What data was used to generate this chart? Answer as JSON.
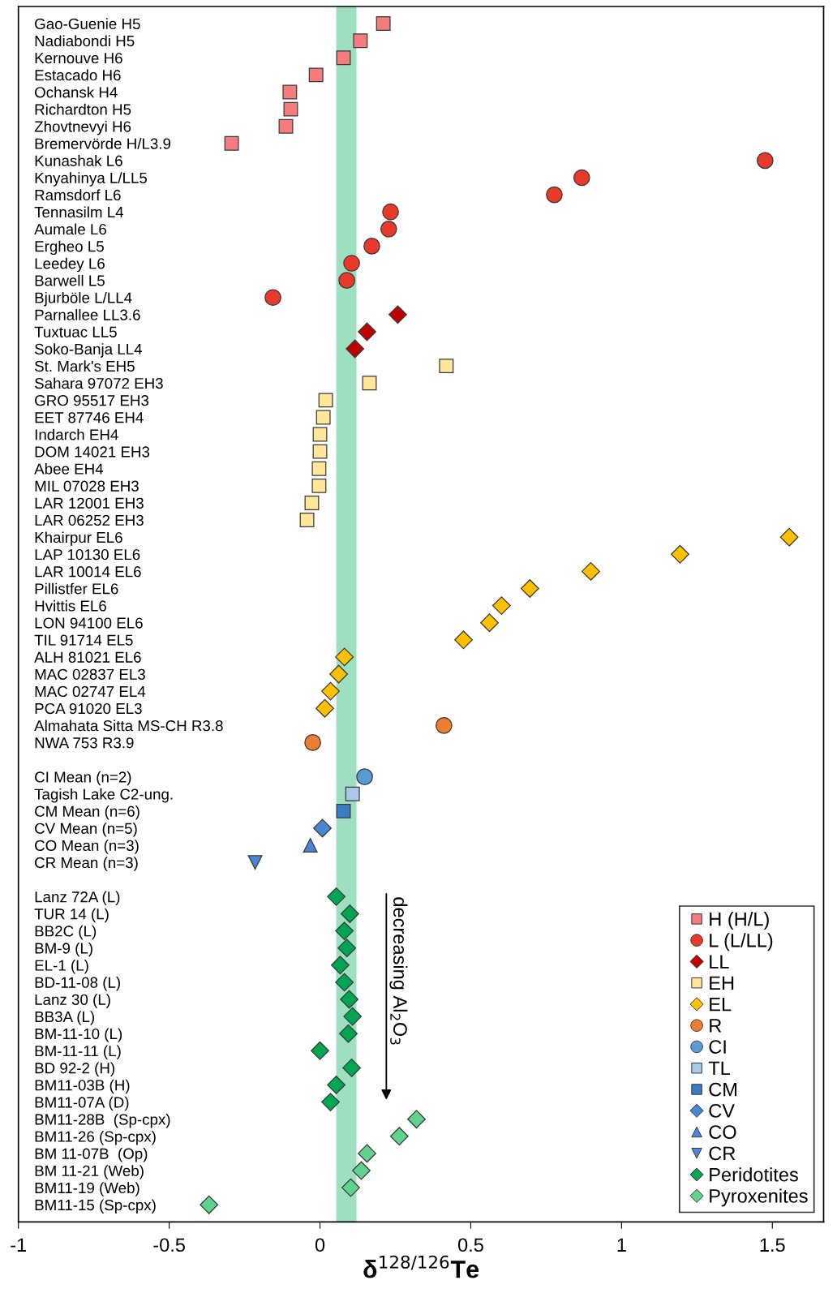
{
  "chart_data": {
    "type": "scatter",
    "orientation": "horizontal",
    "xlabel": "δ$^{128/126}$Te",
    "categories": [
      "Gao-Guenie H5",
      "Nadiabondi H5",
      "Kernouve H6",
      "Estacado H6",
      "Ochansk H4",
      "Richardton H5",
      "Zhovtnevyi H6",
      "Bremervörde H/L3.9",
      "Kunashak L6",
      "Knyahinya L/LL5",
      "Ramsdorf L6",
      "Tennasilm L4",
      "Aumale L6",
      "Ergheo L5",
      "Leedey L6",
      "Barwell L5",
      "Bjurböle L/LL4",
      "Parnallee LL3.6",
      "Tuxtuac LL5",
      "Soko-Banja LL4",
      "St. Mark's EH5",
      "Sahara 97072 EH3",
      "GRO 95517 EH3",
      "EET 87746 EH4",
      "Indarch EH4",
      "DOM 14021 EH3",
      "Abee EH4",
      "MIL 07028 EH3",
      "LAR 12001 EH3",
      "LAR 06252 EH3",
      "Khairpur EL6",
      "LAP 10130 EL6",
      "LAR 10014 EL6",
      "Pillistfer EL6",
      "Hvittis EL6",
      "LON 94100 EL6",
      "TIL 91714 EL5",
      "ALH 81021 EL6",
      "MAC 02837 EL3",
      "MAC 02747 EL4",
      "PCA 91020 EL3",
      "Almahata Sitta MS-CH R3.8",
      "NWA 753 R3.9",
      null,
      "CI Mean (n=2)",
      "Tagish Lake C2-ung.",
      "CM Mean (n=6)",
      "CV Mean (n=5)",
      "CO Mean (n=3)",
      "CR Mean (n=3)",
      null,
      "Lanz 72A (L)",
      "TUR 14 (L)",
      "BB2C (L)",
      "BM-9 (L)",
      "EL-1 (L)",
      "BD-11-08 (L)",
      "Lanz 30 (L)",
      "BB3A (L)",
      "BM-11-10 (L)",
      "BM-11-11 (L)",
      "BD 92-2 (H)",
      "BM11-03B (H)",
      "BM11-07A (D)",
      "BM11-28B  (Sp-cpx)",
      "BM11-26 (Sp-cpx)",
      "BM 11-07B  (Op)",
      "BM 11-21 (Web)",
      "BM11-19 (Web)",
      "BM11-15 (Sp-cpx)"
    ],
    "series": [
      {
        "name": "H (H/L)",
        "color": "#f47c7c",
        "marker": "square",
        "values": [
          0.21,
          0.134,
          0.078,
          -0.013,
          -0.1,
          -0.097,
          -0.113,
          -0.293,
          null,
          null,
          null,
          null,
          null,
          null,
          null,
          null,
          null,
          null,
          null,
          null,
          null,
          null,
          null,
          null,
          null,
          null,
          null,
          null,
          null,
          null,
          null,
          null,
          null,
          null,
          null,
          null,
          null,
          null,
          null,
          null,
          null,
          null,
          null,
          null,
          null,
          null,
          null,
          null,
          null,
          null,
          null,
          null,
          null,
          null,
          null,
          null,
          null,
          null,
          null,
          null,
          null,
          null,
          null,
          null,
          null,
          null,
          null,
          null,
          null,
          null
        ]
      },
      {
        "name": "L (L/LL)",
        "color": "#e8392a",
        "marker": "circle",
        "values": [
          null,
          null,
          null,
          null,
          null,
          null,
          null,
          null,
          1.476,
          0.868,
          0.777,
          0.234,
          0.228,
          0.172,
          0.105,
          0.089,
          -0.156,
          null,
          null,
          null,
          null,
          null,
          null,
          null,
          null,
          null,
          null,
          null,
          null,
          null,
          null,
          null,
          null,
          null,
          null,
          null,
          null,
          null,
          null,
          null,
          null,
          null,
          null,
          null,
          null,
          null,
          null,
          null,
          null,
          null,
          null,
          null,
          null,
          null,
          null,
          null,
          null,
          null,
          null,
          null,
          null,
          null,
          null,
          null,
          null,
          null,
          null,
          null,
          null,
          null
        ]
      },
      {
        "name": "LL",
        "color": "#c00000",
        "marker": "diamond",
        "values": [
          null,
          null,
          null,
          null,
          null,
          null,
          null,
          null,
          null,
          null,
          null,
          null,
          null,
          null,
          null,
          null,
          null,
          0.258,
          0.156,
          0.116,
          null,
          null,
          null,
          null,
          null,
          null,
          null,
          null,
          null,
          null,
          null,
          null,
          null,
          null,
          null,
          null,
          null,
          null,
          null,
          null,
          null,
          null,
          null,
          null,
          null,
          null,
          null,
          null,
          null,
          null,
          null,
          null,
          null,
          null,
          null,
          null,
          null,
          null,
          null,
          null,
          null,
          null,
          null,
          null,
          null,
          null,
          null,
          null,
          null,
          null
        ]
      },
      {
        "name": "EH",
        "color": "#ffe699",
        "marker": "square",
        "values": [
          null,
          null,
          null,
          null,
          null,
          null,
          null,
          null,
          null,
          null,
          null,
          null,
          null,
          null,
          null,
          null,
          null,
          null,
          null,
          null,
          0.419,
          0.164,
          0.019,
          0.011,
          0.0,
          0.0,
          -0.003,
          -0.003,
          -0.027,
          -0.043,
          null,
          null,
          null,
          null,
          null,
          null,
          null,
          null,
          null,
          null,
          null,
          null,
          null,
          null,
          null,
          null,
          null,
          null,
          null,
          null,
          null,
          null,
          null,
          null,
          null,
          null,
          null,
          null,
          null,
          null,
          null,
          null,
          null,
          null,
          null,
          null,
          null,
          null,
          null,
          null
        ]
      },
      {
        "name": "EL",
        "color": "#ffc000",
        "marker": "diamond",
        "values": [
          null,
          null,
          null,
          null,
          null,
          null,
          null,
          null,
          null,
          null,
          null,
          null,
          null,
          null,
          null,
          null,
          null,
          null,
          null,
          null,
          null,
          null,
          null,
          null,
          null,
          null,
          null,
          null,
          null,
          null,
          1.556,
          1.194,
          0.898,
          0.696,
          0.602,
          0.562,
          0.476,
          0.081,
          0.062,
          0.035,
          0.016,
          null,
          null,
          null,
          null,
          null,
          null,
          null,
          null,
          null,
          null,
          null,
          null,
          null,
          null,
          null,
          null,
          null,
          null,
          null,
          null,
          null,
          null,
          null,
          null,
          null,
          null,
          null,
          null,
          null
        ]
      },
      {
        "name": "R",
        "color": "#ed7d31",
        "marker": "circle",
        "values": [
          null,
          null,
          null,
          null,
          null,
          null,
          null,
          null,
          null,
          null,
          null,
          null,
          null,
          null,
          null,
          null,
          null,
          null,
          null,
          null,
          null,
          null,
          null,
          null,
          null,
          null,
          null,
          null,
          null,
          null,
          null,
          null,
          null,
          null,
          null,
          null,
          null,
          null,
          null,
          null,
          null,
          0.411,
          -0.024,
          null,
          null,
          null,
          null,
          null,
          null,
          null,
          null,
          null,
          null,
          null,
          null,
          null,
          null,
          null,
          null,
          null,
          null,
          null,
          null,
          null,
          null,
          null,
          null,
          null,
          null,
          null
        ]
      },
      {
        "name": "CI",
        "color": "#5b9bd5",
        "marker": "circle",
        "values": [
          null,
          null,
          null,
          null,
          null,
          null,
          null,
          null,
          null,
          null,
          null,
          null,
          null,
          null,
          null,
          null,
          null,
          null,
          null,
          null,
          null,
          null,
          null,
          null,
          null,
          null,
          null,
          null,
          null,
          null,
          null,
          null,
          null,
          null,
          null,
          null,
          null,
          null,
          null,
          null,
          null,
          null,
          null,
          null,
          0.148,
          null,
          null,
          null,
          null,
          null,
          null,
          null,
          null,
          null,
          null,
          null,
          null,
          null,
          null,
          null,
          null,
          null,
          null,
          null,
          null,
          null,
          null,
          null,
          null,
          null
        ]
      },
      {
        "name": "TL",
        "color": "#a9c8ea",
        "marker": "square",
        "values": [
          null,
          null,
          null,
          null,
          null,
          null,
          null,
          null,
          null,
          null,
          null,
          null,
          null,
          null,
          null,
          null,
          null,
          null,
          null,
          null,
          null,
          null,
          null,
          null,
          null,
          null,
          null,
          null,
          null,
          null,
          null,
          null,
          null,
          null,
          null,
          null,
          null,
          null,
          null,
          null,
          null,
          null,
          null,
          null,
          null,
          0.108,
          null,
          null,
          null,
          null,
          null,
          null,
          null,
          null,
          null,
          null,
          null,
          null,
          null,
          null,
          null,
          null,
          null,
          null,
          null,
          null,
          null,
          null,
          null,
          null
        ]
      },
      {
        "name": "CM",
        "color": "#3a7cc8",
        "marker": "square",
        "values": [
          null,
          null,
          null,
          null,
          null,
          null,
          null,
          null,
          null,
          null,
          null,
          null,
          null,
          null,
          null,
          null,
          null,
          null,
          null,
          null,
          null,
          null,
          null,
          null,
          null,
          null,
          null,
          null,
          null,
          null,
          null,
          null,
          null,
          null,
          null,
          null,
          null,
          null,
          null,
          null,
          null,
          null,
          null,
          null,
          null,
          null,
          0.078,
          null,
          null,
          null,
          null,
          null,
          null,
          null,
          null,
          null,
          null,
          null,
          null,
          null,
          null,
          null,
          null,
          null,
          null,
          null,
          null,
          null,
          null,
          null
        ]
      },
      {
        "name": "CV",
        "color": "#4a86d6",
        "marker": "diamond",
        "values": [
          null,
          null,
          null,
          null,
          null,
          null,
          null,
          null,
          null,
          null,
          null,
          null,
          null,
          null,
          null,
          null,
          null,
          null,
          null,
          null,
          null,
          null,
          null,
          null,
          null,
          null,
          null,
          null,
          null,
          null,
          null,
          null,
          null,
          null,
          null,
          null,
          null,
          null,
          null,
          null,
          null,
          null,
          null,
          null,
          null,
          null,
          null,
          0.008,
          null,
          null,
          null,
          null,
          null,
          null,
          null,
          null,
          null,
          null,
          null,
          null,
          null,
          null,
          null,
          null,
          null,
          null,
          null,
          null,
          null,
          null
        ]
      },
      {
        "name": "CO",
        "color": "#4a86d6",
        "marker": "triangle",
        "values": [
          null,
          null,
          null,
          null,
          null,
          null,
          null,
          null,
          null,
          null,
          null,
          null,
          null,
          null,
          null,
          null,
          null,
          null,
          null,
          null,
          null,
          null,
          null,
          null,
          null,
          null,
          null,
          null,
          null,
          null,
          null,
          null,
          null,
          null,
          null,
          null,
          null,
          null,
          null,
          null,
          null,
          null,
          null,
          null,
          null,
          null,
          null,
          null,
          -0.032,
          null,
          null,
          null,
          null,
          null,
          null,
          null,
          null,
          null,
          null,
          null,
          null,
          null,
          null,
          null,
          null,
          null,
          null,
          null,
          null,
          null
        ]
      },
      {
        "name": "CR",
        "color": "#4a86d6",
        "marker": "triangle_down",
        "values": [
          null,
          null,
          null,
          null,
          null,
          null,
          null,
          null,
          null,
          null,
          null,
          null,
          null,
          null,
          null,
          null,
          null,
          null,
          null,
          null,
          null,
          null,
          null,
          null,
          null,
          null,
          null,
          null,
          null,
          null,
          null,
          null,
          null,
          null,
          null,
          null,
          null,
          null,
          null,
          null,
          null,
          null,
          null,
          null,
          null,
          null,
          null,
          null,
          null,
          -0.215,
          null,
          null,
          null,
          null,
          null,
          null,
          null,
          null,
          null,
          null,
          null,
          null,
          null,
          null,
          null,
          null,
          null,
          null,
          null,
          null
        ]
      },
      {
        "name": "Peridotites",
        "color": "#00a651",
        "marker": "diamond",
        "values": [
          null,
          null,
          null,
          null,
          null,
          null,
          null,
          null,
          null,
          null,
          null,
          null,
          null,
          null,
          null,
          null,
          null,
          null,
          null,
          null,
          null,
          null,
          null,
          null,
          null,
          null,
          null,
          null,
          null,
          null,
          null,
          null,
          null,
          null,
          null,
          null,
          null,
          null,
          null,
          null,
          null,
          null,
          null,
          null,
          null,
          null,
          null,
          null,
          null,
          null,
          null,
          0.054,
          0.099,
          0.081,
          0.089,
          0.067,
          0.081,
          0.097,
          0.108,
          0.094,
          0.0,
          0.105,
          0.054,
          0.035,
          null,
          null,
          null,
          null,
          null,
          null
        ]
      },
      {
        "name": "Pyroxenites",
        "color": "#5fd38d",
        "marker": "diamond",
        "values": [
          null,
          null,
          null,
          null,
          null,
          null,
          null,
          null,
          null,
          null,
          null,
          null,
          null,
          null,
          null,
          null,
          null,
          null,
          null,
          null,
          null,
          null,
          null,
          null,
          null,
          null,
          null,
          null,
          null,
          null,
          null,
          null,
          null,
          null,
          null,
          null,
          null,
          null,
          null,
          null,
          null,
          null,
          null,
          null,
          null,
          null,
          null,
          null,
          null,
          null,
          null,
          null,
          null,
          null,
          null,
          null,
          null,
          null,
          null,
          null,
          null,
          null,
          null,
          null,
          0.32,
          0.263,
          0.156,
          0.137,
          0.102,
          -0.368
        ]
      }
    ],
    "bands": [
      {
        "axis": "x",
        "from": 0.054,
        "to": 0.121,
        "color": "#9ddfbe"
      }
    ],
    "annotations": [
      "decreasing Al$_{2}$O$_{3}$"
    ],
    "xlim": [
      -1,
      1.67
    ],
    "xticks": [
      -1,
      -0.5,
      0,
      0.5,
      1,
      1.5
    ],
    "grid": false,
    "legend": "bottom right",
    "tick_labels": "x"
  }
}
